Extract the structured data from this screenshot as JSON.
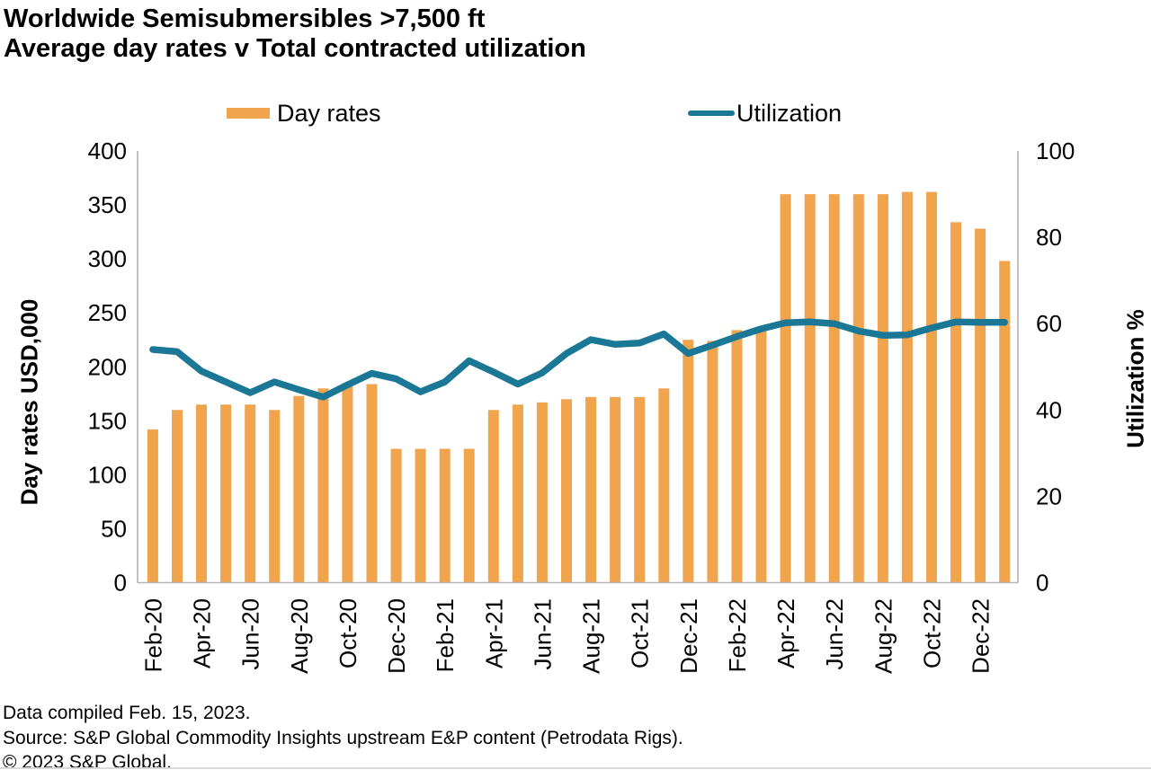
{
  "header": {
    "title_line1": "Worldwide Semisubmersibles >7,500 ft",
    "title_line2": "Average day rates v Total contracted utilization"
  },
  "legend": {
    "day_rates_label": "Day rates",
    "utilization_label": "Utilization"
  },
  "colors": {
    "bar": "#F0A44E",
    "line": "#1A7896",
    "axis": "#B3B3B3"
  },
  "chart_data": {
    "type": "bar+line",
    "title": "Worldwide Semisubmersibles >7,500 ft — Average day rates v Total contracted utilization",
    "grid": false,
    "legend_position": "top",
    "categories": [
      "Feb-20",
      "Mar-20",
      "Apr-20",
      "May-20",
      "Jun-20",
      "Jul-20",
      "Aug-20",
      "Sep-20",
      "Oct-20",
      "Nov-20",
      "Dec-20",
      "Jan-21",
      "Feb-21",
      "Mar-21",
      "Apr-21",
      "May-21",
      "Jun-21",
      "Jul-21",
      "Aug-21",
      "Sep-21",
      "Oct-21",
      "Nov-21",
      "Dec-21",
      "Jan-22",
      "Feb-22",
      "Mar-22",
      "Apr-22",
      "May-22",
      "Jun-22",
      "Jul-22",
      "Aug-22",
      "Sep-22",
      "Oct-22",
      "Nov-22",
      "Dec-22",
      "Jan-23"
    ],
    "x_tick_labels": [
      "Feb-20",
      "Apr-20",
      "Jun-20",
      "Aug-20",
      "Oct-20",
      "Dec-20",
      "Feb-21",
      "Apr-21",
      "Jun-21",
      "Aug-21",
      "Oct-21",
      "Dec-21",
      "Feb-22",
      "Apr-22",
      "Jun-22",
      "Aug-22",
      "Oct-22",
      "Dec-22"
    ],
    "series": [
      {
        "name": "Day rates",
        "type": "bar",
        "axis": "left",
        "color": "#F0A44E",
        "values": [
          142,
          160,
          165,
          165,
          165,
          160,
          173,
          180,
          185,
          184,
          124,
          124,
          124,
          124,
          160,
          165,
          167,
          170,
          172,
          172,
          172,
          180,
          225,
          224,
          234,
          235,
          360,
          360,
          360,
          360,
          360,
          362,
          362,
          334,
          328,
          298
        ]
      },
      {
        "name": "Utilization",
        "type": "line",
        "axis": "right",
        "color": "#1A7896",
        "values": [
          54,
          53.5,
          49,
          46.5,
          44,
          46.5,
          44.7,
          43,
          45.8,
          48.5,
          47.2,
          44.2,
          46.5,
          51.4,
          48.8,
          46,
          48.6,
          53.1,
          56.3,
          55.2,
          55.5,
          57.6,
          53.1,
          55,
          57,
          58.8,
          60.2,
          60.4,
          60,
          58.3,
          57.3,
          57.4,
          59,
          60.4,
          60.3,
          60.3
        ]
      }
    ],
    "left_axis": {
      "title": "Day rates USD,000",
      "min": 0,
      "max": 400,
      "step": 50,
      "tick_labels": [
        "0",
        "50",
        "100",
        "150",
        "200",
        "250",
        "300",
        "350",
        "400"
      ]
    },
    "right_axis": {
      "title": "Utilization %",
      "min": 0,
      "max": 100,
      "step": 20,
      "tick_labels": [
        "0",
        "20",
        "40",
        "60",
        "80",
        "100"
      ]
    }
  },
  "footer": {
    "line1": "Data compiled Feb. 15, 2023.",
    "line2": "Source: S&P Global Commodity Insights upstream E&P content (Petrodata Rigs).",
    "line3": "© 2023 S&P Global."
  }
}
